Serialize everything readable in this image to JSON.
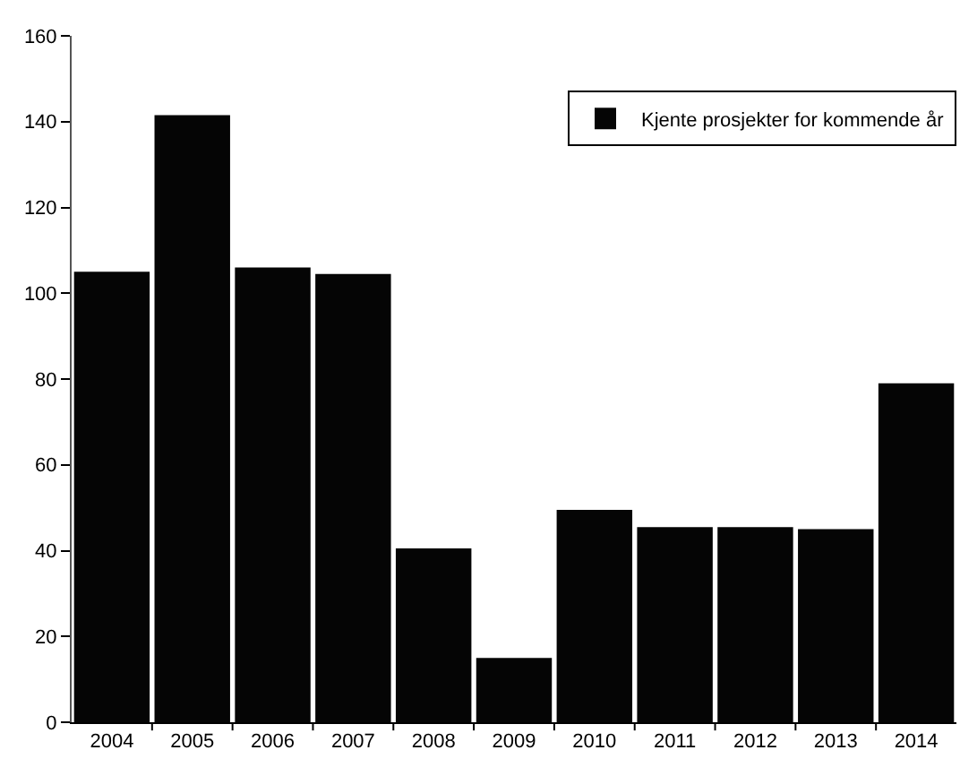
{
  "chart_data": {
    "type": "bar",
    "categories": [
      "2004",
      "2005",
      "2006",
      "2007",
      "2008",
      "2009",
      "2010",
      "2011",
      "2012",
      "2013",
      "2014"
    ],
    "series": [
      {
        "name": "Kjente prosjekter for kommende år",
        "color": "#050505",
        "values": [
          105,
          141.5,
          106,
          104.5,
          40.5,
          15,
          49.5,
          45.5,
          45.5,
          45,
          79
        ]
      }
    ],
    "ylim": [
      0,
      160
    ],
    "yticks": [
      0,
      20,
      40,
      60,
      80,
      100,
      120,
      140,
      160
    ],
    "grid": false,
    "legend": "top right"
  }
}
